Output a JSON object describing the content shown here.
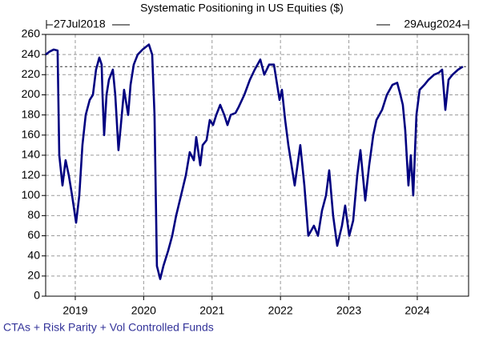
{
  "chart_data": {
    "type": "line",
    "title": "Systematic Positioning in US Equities ($)",
    "start_label": "27Jul2018",
    "end_label": "29Aug2024",
    "caption": "CTAs + Risk Parity + Vol Controlled Funds",
    "xlim": [
      2018.567,
      2024.75
    ],
    "xticks": [
      2019,
      2020,
      2021,
      2022,
      2023,
      2024
    ],
    "ylim": [
      0,
      260
    ],
    "yticks": [
      0,
      20,
      40,
      60,
      80,
      100,
      120,
      140,
      160,
      180,
      200,
      220,
      240,
      260
    ],
    "grid": true,
    "hline": 228,
    "x": [
      2018.567,
      2018.625,
      2018.684,
      2018.742,
      2018.766,
      2018.813,
      2018.859,
      2018.906,
      2018.953,
      2019.012,
      2019.059,
      2019.105,
      2019.152,
      2019.211,
      2019.258,
      2019.304,
      2019.351,
      2019.386,
      2019.398,
      2019.422,
      2019.457,
      2019.492,
      2019.55,
      2019.585,
      2019.632,
      2019.667,
      2019.714,
      2019.773,
      2019.808,
      2019.855,
      2019.913,
      2019.984,
      2020.077,
      2020.124,
      2020.159,
      2020.194,
      2020.241,
      2020.288,
      2020.358,
      2020.417,
      2020.475,
      2020.546,
      2020.616,
      2020.674,
      2020.733,
      2020.768,
      2020.827,
      2020.862,
      2020.92,
      2020.967,
      2021.014,
      2021.061,
      2021.119,
      2021.178,
      2021.225,
      2021.272,
      2021.342,
      2021.389,
      2021.471,
      2021.553,
      2021.623,
      2021.705,
      2021.763,
      2021.834,
      2021.904,
      2021.986,
      2022.021,
      2022.068,
      2022.115,
      2022.208,
      2022.29,
      2022.349,
      2022.407,
      2022.489,
      2022.548,
      2022.607,
      2022.665,
      2022.712,
      2022.77,
      2022.829,
      2022.899,
      2022.946,
      2023.005,
      2023.063,
      2023.122,
      2023.169,
      2023.239,
      2023.297,
      2023.356,
      2023.403,
      2023.485,
      2023.555,
      2023.637,
      2023.707,
      2023.754,
      2023.789,
      2023.824,
      2023.871,
      2023.906,
      2023.941,
      2023.988,
      2024.035,
      2024.105,
      2024.164,
      2024.246,
      2024.316,
      2024.363,
      2024.41,
      2024.457,
      2024.515,
      2024.597,
      2024.667
    ],
    "series": [
      {
        "name": "Systematic Positioning",
        "color": "#000080",
        "values": [
          240,
          243,
          245,
          244,
          140,
          110,
          135,
          120,
          100,
          73,
          100,
          150,
          180,
          195,
          200,
          225,
          237,
          230,
          200,
          160,
          200,
          215,
          225,
          200,
          145,
          170,
          205,
          180,
          210,
          230,
          240,
          245,
          250,
          240,
          180,
          30,
          17,
          30,
          45,
          60,
          80,
          100,
          120,
          143,
          135,
          158,
          130,
          150,
          155,
          175,
          170,
          180,
          190,
          180,
          170,
          180,
          182,
          188,
          200,
          215,
          225,
          235,
          220,
          230,
          230,
          195,
          205,
          175,
          150,
          110,
          150,
          110,
          60,
          70,
          60,
          85,
          100,
          125,
          80,
          50,
          70,
          90,
          60,
          75,
          120,
          145,
          95,
          130,
          160,
          175,
          185,
          200,
          210,
          212,
          200,
          190,
          165,
          110,
          140,
          100,
          180,
          205,
          210,
          215,
          220,
          222,
          225,
          185,
          215,
          220,
          225,
          228
        ]
      }
    ]
  }
}
